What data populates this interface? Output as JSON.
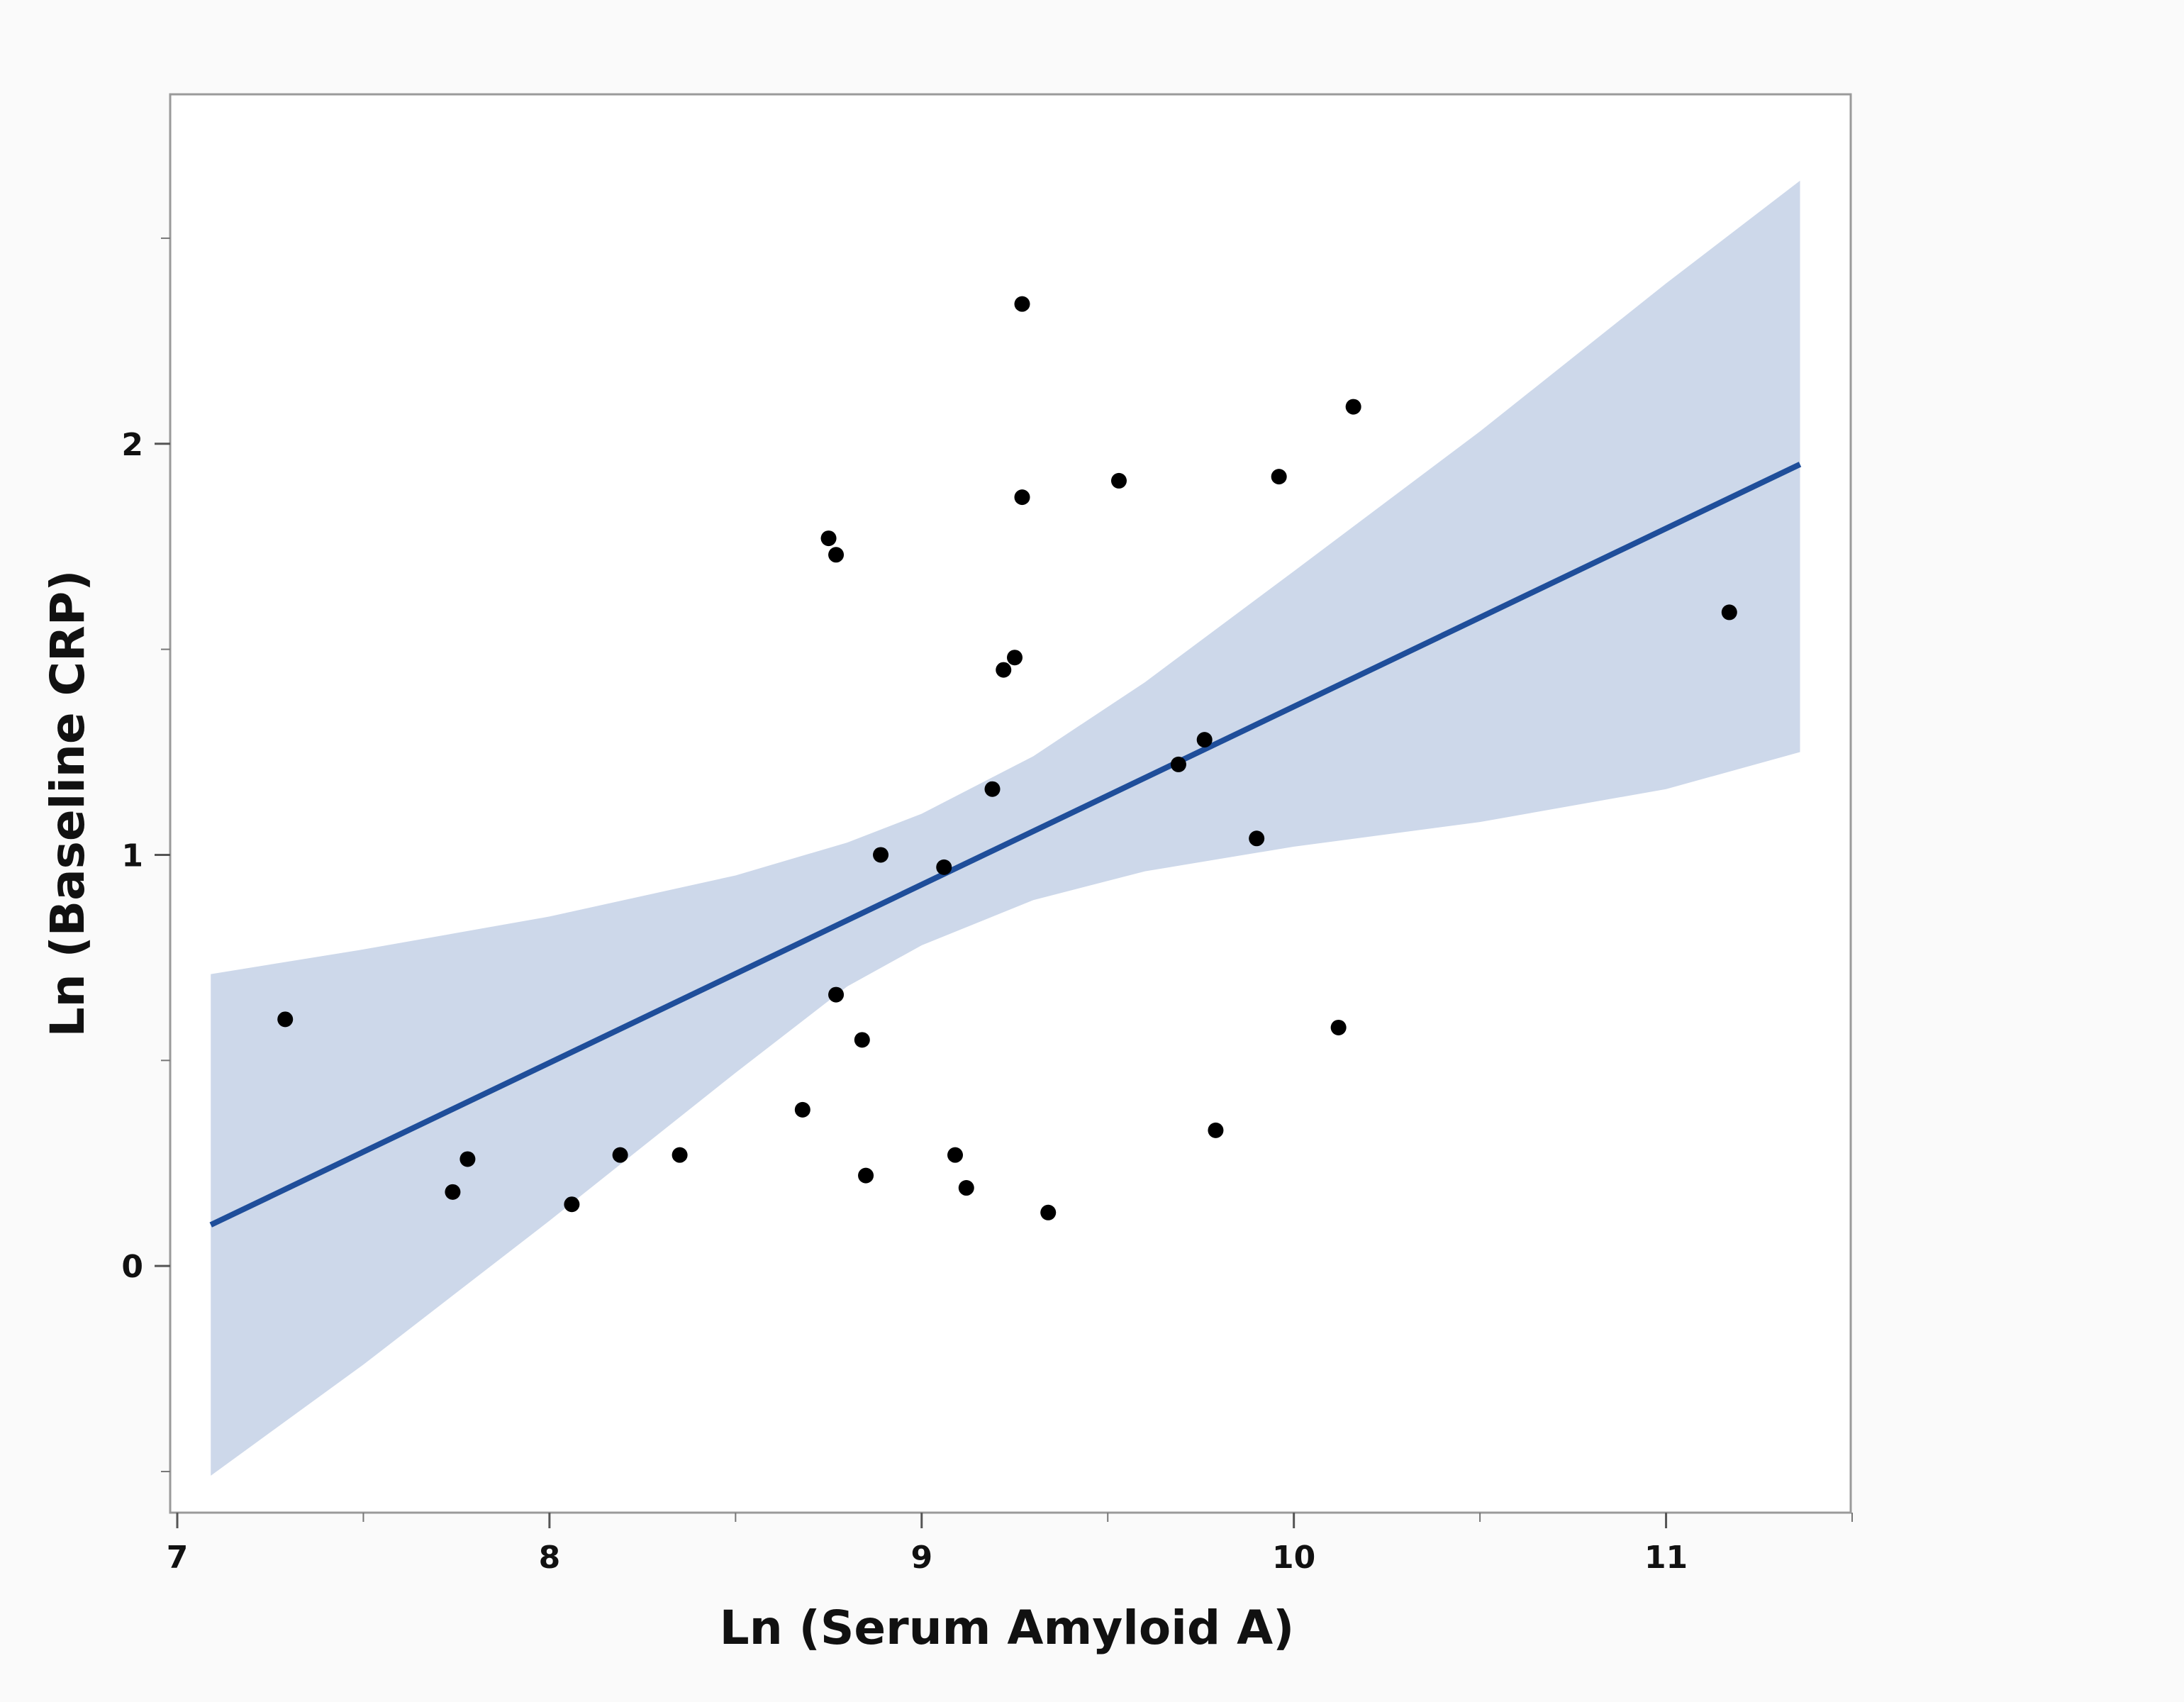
{
  "chart_data": {
    "type": "scatter",
    "xlabel": "Ln (Serum Amyloid A)",
    "ylabel": "Ln (Baseline CRP)",
    "xlim": [
      7,
      11.5
    ],
    "ylim": [
      -0.6,
      2.85
    ],
    "x_ticks": [
      7,
      8,
      9,
      10,
      11
    ],
    "y_ticks": [
      0,
      1,
      2
    ],
    "x_minor_ticks": [
      7.5,
      8.5,
      9.5,
      10.5,
      11.5
    ],
    "y_minor_ticks": [
      -0.5,
      0.5,
      1.5,
      2.5
    ],
    "grid": false,
    "colors": {
      "points": "#000000",
      "fit_line": "#1f4e9a",
      "confidence_band": "#cdd8ea",
      "plot_bg": "#ffffff",
      "figure_bg": "#fafafa"
    },
    "points": [
      {
        "x": 7.29,
        "y": 0.6
      },
      {
        "x": 7.74,
        "y": 0.18
      },
      {
        "x": 7.78,
        "y": 0.26
      },
      {
        "x": 8.06,
        "y": 0.15
      },
      {
        "x": 8.19,
        "y": 0.27
      },
      {
        "x": 8.35,
        "y": 0.27
      },
      {
        "x": 8.68,
        "y": 0.38
      },
      {
        "x": 8.75,
        "y": 1.77
      },
      {
        "x": 8.77,
        "y": 1.73
      },
      {
        "x": 8.77,
        "y": 0.66
      },
      {
        "x": 8.84,
        "y": 0.55
      },
      {
        "x": 8.85,
        "y": 0.22
      },
      {
        "x": 8.89,
        "y": 1.0
      },
      {
        "x": 9.06,
        "y": 0.97
      },
      {
        "x": 9.09,
        "y": 0.27
      },
      {
        "x": 9.12,
        "y": 0.19
      },
      {
        "x": 9.19,
        "y": 1.16
      },
      {
        "x": 9.22,
        "y": 1.45
      },
      {
        "x": 9.25,
        "y": 1.48
      },
      {
        "x": 9.27,
        "y": 2.34
      },
      {
        "x": 9.27,
        "y": 1.87
      },
      {
        "x": 9.34,
        "y": 0.13
      },
      {
        "x": 9.53,
        "y": 1.91
      },
      {
        "x": 9.69,
        "y": 1.22
      },
      {
        "x": 9.76,
        "y": 1.28
      },
      {
        "x": 9.79,
        "y": 0.33
      },
      {
        "x": 9.9,
        "y": 1.04
      },
      {
        "x": 9.96,
        "y": 1.92
      },
      {
        "x": 10.12,
        "y": 0.58
      },
      {
        "x": 10.16,
        "y": 2.09
      },
      {
        "x": 11.17,
        "y": 1.59
      }
    ],
    "fit_line": {
      "x": [
        7.09,
        11.36
      ],
      "y": [
        0.1,
        1.95
      ]
    },
    "confidence_band": {
      "x": [
        7.09,
        7.5,
        8.0,
        8.5,
        8.8,
        9.0,
        9.3,
        9.6,
        10.0,
        10.5,
        11.0,
        11.36
      ],
      "upper": [
        0.71,
        0.77,
        0.85,
        0.95,
        1.03,
        1.1,
        1.24,
        1.42,
        1.69,
        2.03,
        2.39,
        2.64
      ],
      "lower": [
        -0.51,
        -0.24,
        0.11,
        0.47,
        0.68,
        0.78,
        0.89,
        0.96,
        1.02,
        1.08,
        1.16,
        1.25
      ]
    }
  }
}
